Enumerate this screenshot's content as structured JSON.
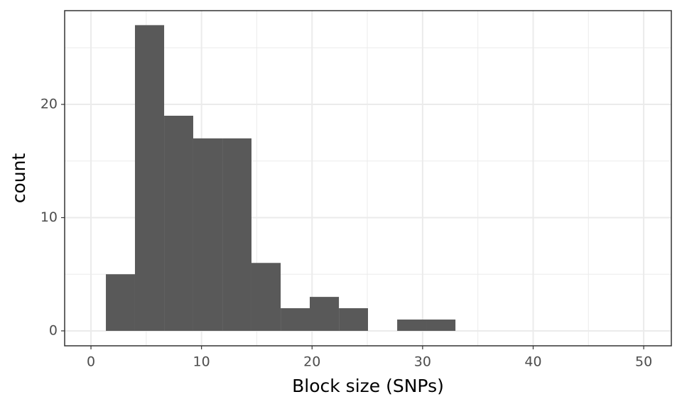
{
  "chart_data": {
    "type": "histogram",
    "x_label": "Block size (SNPs)",
    "y_label": "count",
    "bins": [
      1.35,
      3.98,
      6.62,
      9.25,
      11.89,
      14.52,
      17.16,
      19.79,
      22.43,
      25.06,
      27.7,
      30.33,
      32.97
    ],
    "counts": [
      5,
      27,
      19,
      17,
      17,
      6,
      2,
      3,
      2,
      0,
      1,
      1
    ],
    "color": "#595959",
    "xlim": [
      -2.38,
      52.5
    ],
    "ylim": [
      -1.32,
      28.28
    ],
    "xticks": [
      0,
      10,
      20,
      30,
      40,
      50
    ],
    "yticks": [
      0,
      10,
      20
    ],
    "x_minor_ticks": [
      5,
      15,
      25,
      35,
      45
    ],
    "y_minor_ticks": [
      5,
      15,
      25
    ],
    "grid": true
  }
}
